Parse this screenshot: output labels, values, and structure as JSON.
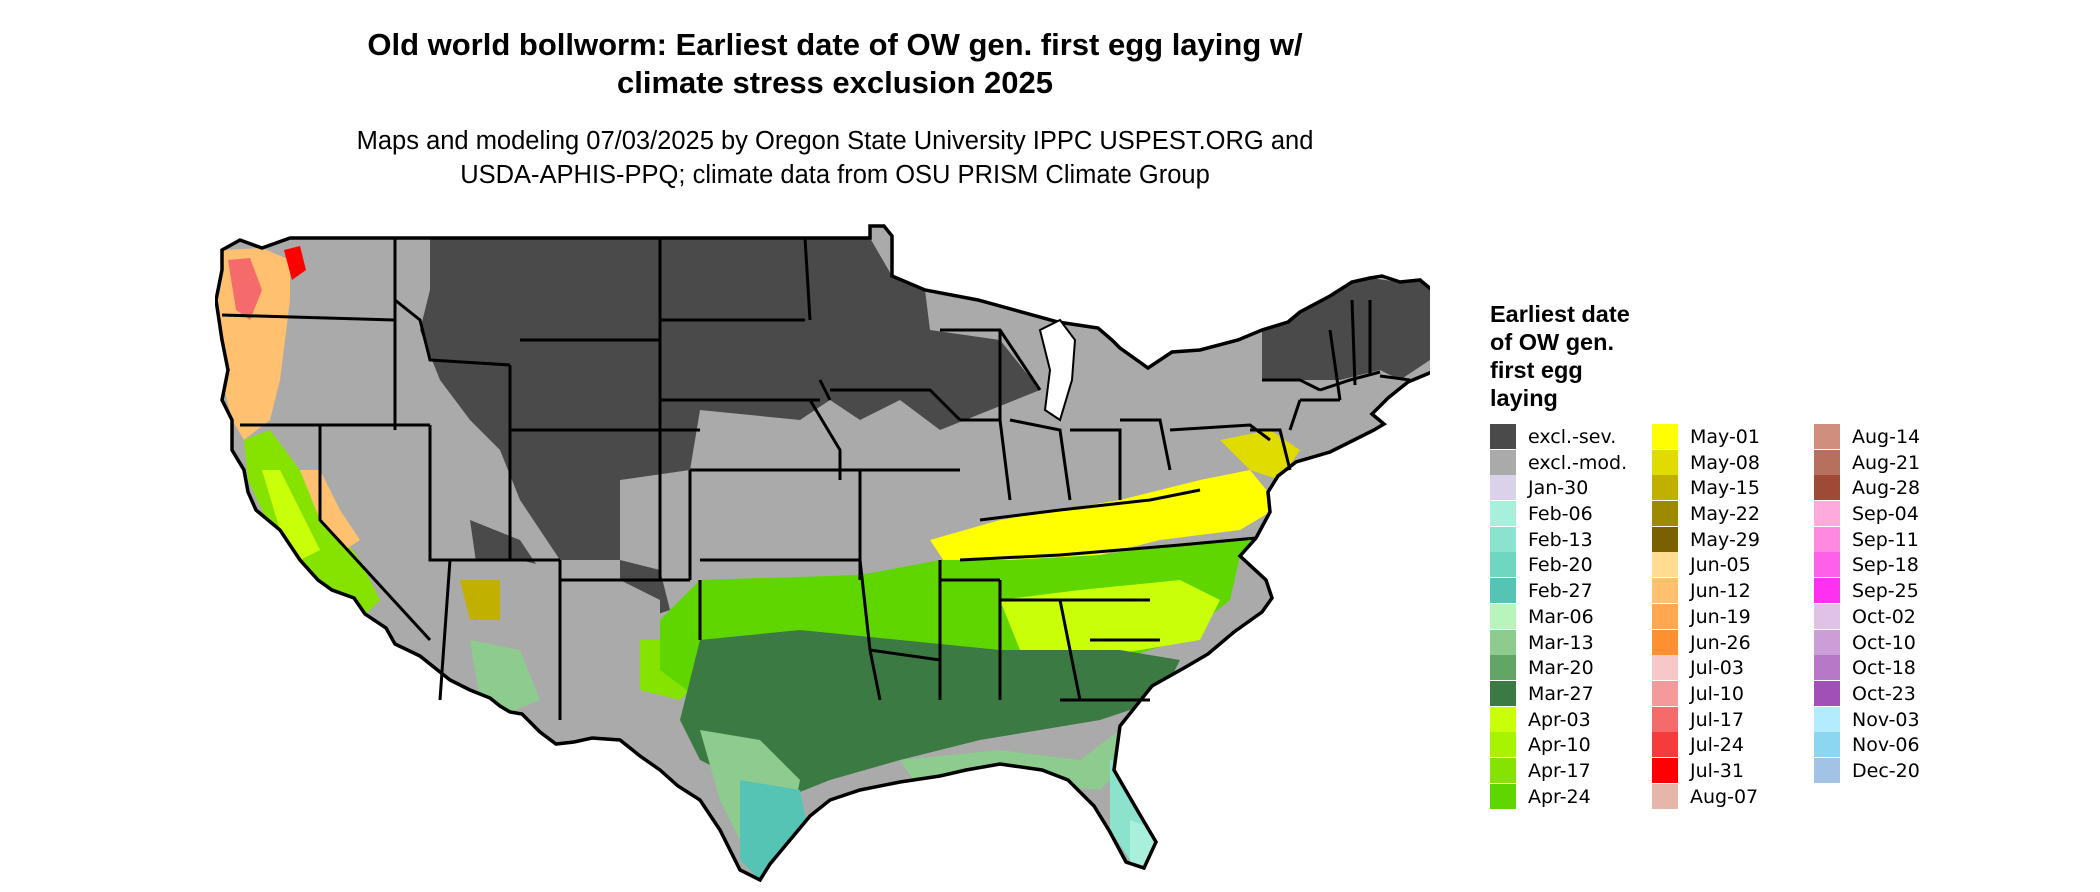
{
  "title_line1": "Old world bollworm: Earliest date of OW gen. first egg laying w/",
  "title_line2": "climate stress exclusion 2025",
  "subtitle_line1": "Maps and modeling 07/03/2025 by Oregon State University IPPC USPEST.ORG and",
  "subtitle_line2": "USDA-APHIS-PPQ; climate data from OSU PRISM Climate Group",
  "legend": {
    "title_lines": [
      "Earliest date",
      "of OW gen.",
      "first egg",
      "laying"
    ],
    "columns": [
      [
        {
          "label": "excl.-sev.",
          "color": "#4a4a4a"
        },
        {
          "label": "excl.-mod.",
          "color": "#aaaaaa"
        },
        {
          "label": "Jan-30",
          "color": "#d9d2ea"
        },
        {
          "label": "Feb-06",
          "color": "#a8f0dc"
        },
        {
          "label": "Feb-13",
          "color": "#8ce3cd"
        },
        {
          "label": "Feb-20",
          "color": "#6fd6c0"
        },
        {
          "label": "Feb-27",
          "color": "#55c4b4"
        },
        {
          "label": "Mar-06",
          "color": "#b7f5bd"
        },
        {
          "label": "Mar-13",
          "color": "#8ecb8e"
        },
        {
          "label": "Mar-20",
          "color": "#63a565"
        },
        {
          "label": "Mar-27",
          "color": "#3b7b43"
        },
        {
          "label": "Apr-03",
          "color": "#caff0a"
        },
        {
          "label": "Apr-10",
          "color": "#a8f400"
        },
        {
          "label": "Apr-17",
          "color": "#86e300"
        },
        {
          "label": "Apr-24",
          "color": "#5fd600"
        }
      ],
      [
        {
          "label": "May-01",
          "color": "#ffff00"
        },
        {
          "label": "May-08",
          "color": "#e0dc00"
        },
        {
          "label": "May-15",
          "color": "#c2b000"
        },
        {
          "label": "May-22",
          "color": "#9e8a00"
        },
        {
          "label": "May-29",
          "color": "#7a6000"
        },
        {
          "label": "Jun-05",
          "color": "#ffdc90"
        },
        {
          "label": "Jun-12",
          "color": "#ffc070"
        },
        {
          "label": "Jun-19",
          "color": "#ffa850"
        },
        {
          "label": "Jun-26",
          "color": "#ff9030"
        },
        {
          "label": "Jul-03",
          "color": "#f7c8c8"
        },
        {
          "label": "Jul-10",
          "color": "#f59a9a"
        },
        {
          "label": "Jul-17",
          "color": "#f56a6a"
        },
        {
          "label": "Jul-24",
          "color": "#f53b3b"
        },
        {
          "label": "Jul-31",
          "color": "#ff0000"
        },
        {
          "label": "Aug-07",
          "color": "#e6b6aa"
        }
      ],
      [
        {
          "label": "Aug-14",
          "color": "#d08e7e"
        },
        {
          "label": "Aug-21",
          "color": "#b8705e"
        },
        {
          "label": "Aug-28",
          "color": "#9e4a36"
        },
        {
          "label": "Sep-04",
          "color": "#ffaadc"
        },
        {
          "label": "Sep-11",
          "color": "#ff88e0"
        },
        {
          "label": "Sep-18",
          "color": "#ff60ea"
        },
        {
          "label": "Sep-25",
          "color": "#ff30f0"
        },
        {
          "label": "Oct-02",
          "color": "#e0c2e6"
        },
        {
          "label": "Oct-10",
          "color": "#cc9ed8"
        },
        {
          "label": "Oct-18",
          "color": "#b878c8"
        },
        {
          "label": "Oct-23",
          "color": "#a050b6"
        },
        {
          "label": "Nov-03",
          "color": "#b4ecff"
        },
        {
          "label": "Nov-06",
          "color": "#8cd6f2"
        },
        {
          "label": "Dec-20",
          "color": "#a2c2e6"
        }
      ]
    ]
  },
  "map_colors": {
    "excluded_severe": "#4a4a4a",
    "excluded_moderate": "#aaaaaa",
    "border": "#000000"
  }
}
